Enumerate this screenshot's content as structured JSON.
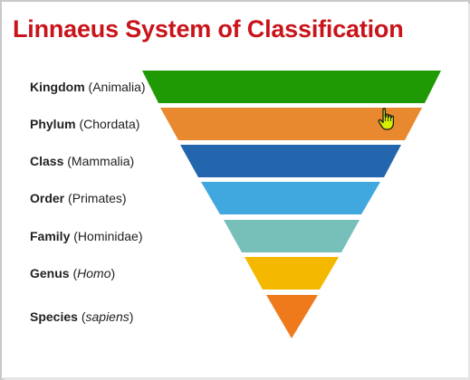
{
  "title": "Linnaeus System of Classification",
  "levels": [
    {
      "rank": "Kingdom",
      "name": "Animalia",
      "italic": false,
      "color": "#1f9a05"
    },
    {
      "rank": "Phylum",
      "name": "Chordata",
      "italic": false,
      "color": "#e8892f"
    },
    {
      "rank": "Class",
      "name": "Mammalia",
      "italic": false,
      "color": "#2366ae"
    },
    {
      "rank": "Order",
      "name": "Primates",
      "italic": false,
      "color": "#41a8df"
    },
    {
      "rank": "Family",
      "name": "Hominidae",
      "italic": false,
      "color": "#76c0b9"
    },
    {
      "rank": "Genus",
      "name": "Homo",
      "italic": true,
      "color": "#f5b800"
    },
    {
      "rank": "Species",
      "name": "sapiens",
      "italic": true,
      "color": "#ee7a1c"
    }
  ],
  "cursor": {
    "icon": "hand-pointer-icon",
    "color": "#d7f000"
  }
}
